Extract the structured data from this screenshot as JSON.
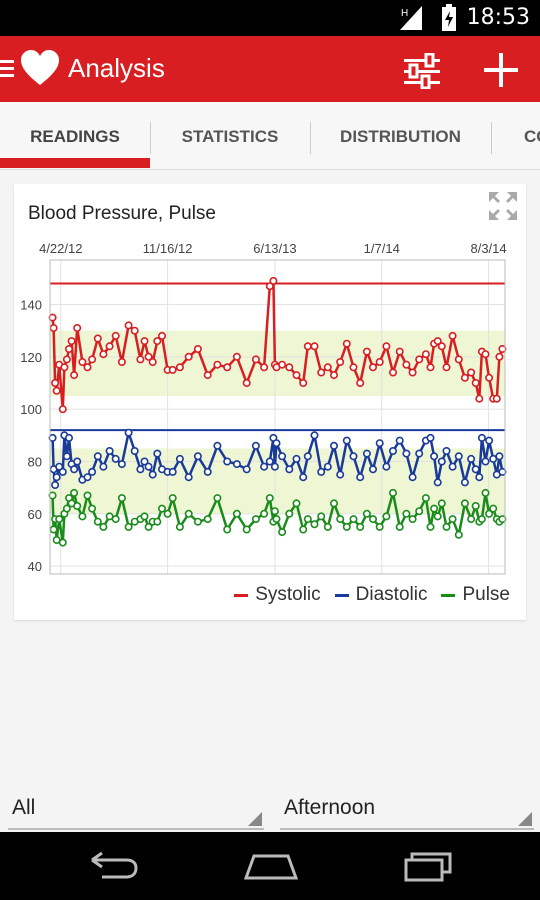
{
  "status_bar": {
    "time": "18:53",
    "network_label": "H"
  },
  "app_bar": {
    "title": "Analysis",
    "icons": [
      "menu-icon",
      "heart-logo-icon",
      "filter-sliders-icon",
      "add-icon"
    ]
  },
  "tabs": [
    {
      "label": "READINGS",
      "selected": true
    },
    {
      "label": "STATISTICS",
      "selected": false
    },
    {
      "label": "DISTRIBUTION",
      "selected": false
    },
    {
      "label": "CO",
      "selected": false
    }
  ],
  "chart_card": {
    "title": "Blood Pressure, Pulse",
    "expand_icon": "expand-icon"
  },
  "chart_data": {
    "type": "line",
    "title": "Blood Pressure, Pulse",
    "x_tick_labels": [
      "4/22/12",
      "11/16/12",
      "6/13/13",
      "1/7/14",
      "8/3/14"
    ],
    "x_range": [
      "2012-04-01",
      "2014-09-04"
    ],
    "y_tick_labels": [
      "40",
      "60",
      "80",
      "100",
      "120",
      "140"
    ],
    "ylim": [
      37,
      157
    ],
    "grid": true,
    "legend_position": "bottom-right",
    "target_bands": [
      {
        "series": "Systolic",
        "range": [
          105,
          130
        ],
        "color": "#eef6d4"
      },
      {
        "series": "Diastolic / Pulse",
        "range": [
          60,
          85
        ],
        "color": "#eef6d4"
      }
    ],
    "reference_lines": [
      {
        "series": "Systolic",
        "value": 148,
        "color": "#d81e21"
      },
      {
        "series": "Diastolic",
        "value": 92,
        "color": "#1a3a99"
      }
    ],
    "series": [
      {
        "name": "Systolic",
        "color": "#d81e21",
        "x": [
          "2012-04-06",
          "2012-04-08",
          "2012-04-11",
          "2012-04-14",
          "2012-04-19",
          "2012-04-26",
          "2012-04-29",
          "2012-05-04",
          "2012-05-08",
          "2012-05-13",
          "2012-05-18",
          "2012-05-24",
          "2012-06-03",
          "2012-06-13",
          "2012-06-22",
          "2012-07-03",
          "2012-07-14",
          "2012-07-26",
          "2012-08-07",
          "2012-08-19",
          "2012-09-01",
          "2012-09-13",
          "2012-09-24",
          "2012-10-02",
          "2012-10-10",
          "2012-10-18",
          "2012-10-27",
          "2012-11-05",
          "2012-11-16",
          "2012-11-26",
          "2012-12-10",
          "2012-12-27",
          "2013-01-14",
          "2013-02-02",
          "2013-02-21",
          "2013-03-12",
          "2013-03-31",
          "2013-04-19",
          "2013-05-07",
          "2013-05-23",
          "2013-06-03",
          "2013-06-10",
          "2013-06-13",
          "2013-06-16",
          "2013-06-27",
          "2013-07-11",
          "2013-07-25",
          "2013-08-07",
          "2013-08-16",
          "2013-08-29",
          "2013-09-11",
          "2013-09-24",
          "2013-10-06",
          "2013-10-18",
          "2013-10-31",
          "2013-11-13",
          "2013-11-26",
          "2013-12-09",
          "2013-12-21",
          "2014-01-03",
          "2014-01-16",
          "2014-01-29",
          "2014-02-11",
          "2014-02-24",
          "2014-03-08",
          "2014-03-21",
          "2014-04-03",
          "2014-04-12",
          "2014-04-19",
          "2014-04-26",
          "2014-05-04",
          "2014-05-13",
          "2014-05-25",
          "2014-06-06",
          "2014-06-18",
          "2014-06-30",
          "2014-07-09",
          "2014-07-16",
          "2014-07-21",
          "2014-07-28",
          "2014-08-04",
          "2014-08-12",
          "2014-08-19",
          "2014-08-24",
          "2014-08-30"
        ],
        "values": [
          135,
          131,
          110,
          107,
          117,
          100,
          116,
          119,
          123,
          126,
          113,
          131,
          118,
          116,
          119,
          127,
          121,
          124,
          128,
          118,
          132,
          130,
          119,
          126,
          120,
          118,
          126,
          128,
          115,
          115,
          116,
          120,
          123,
          113,
          117,
          116,
          120,
          110,
          119,
          116,
          147,
          149,
          117,
          116,
          117,
          116,
          113,
          110,
          124,
          124,
          114,
          116,
          113,
          118,
          125,
          116,
          110,
          122,
          116,
          118,
          124,
          114,
          122,
          117,
          114,
          119,
          121,
          116,
          125,
          126,
          124,
          116,
          128,
          119,
          112,
          114,
          110,
          104,
          122,
          121,
          112,
          104,
          104,
          120,
          123
        ]
      },
      {
        "name": "Diastolic",
        "color": "#1a3a99",
        "x": [
          "2012-04-06",
          "2012-04-08",
          "2012-04-11",
          "2012-04-14",
          "2012-04-19",
          "2012-04-26",
          "2012-04-29",
          "2012-05-04",
          "2012-05-08",
          "2012-05-13",
          "2012-05-18",
          "2012-05-24",
          "2012-06-03",
          "2012-06-13",
          "2012-06-22",
          "2012-07-03",
          "2012-07-14",
          "2012-07-26",
          "2012-08-07",
          "2012-08-19",
          "2012-09-01",
          "2012-09-13",
          "2012-09-24",
          "2012-10-02",
          "2012-10-10",
          "2012-10-18",
          "2012-10-27",
          "2012-11-05",
          "2012-11-16",
          "2012-11-26",
          "2012-12-10",
          "2012-12-27",
          "2013-01-14",
          "2013-02-02",
          "2013-02-21",
          "2013-03-12",
          "2013-03-31",
          "2013-04-19",
          "2013-05-07",
          "2013-05-23",
          "2013-06-03",
          "2013-06-10",
          "2013-06-13",
          "2013-06-16",
          "2013-06-27",
          "2013-07-11",
          "2013-07-25",
          "2013-08-07",
          "2013-08-16",
          "2013-08-29",
          "2013-09-11",
          "2013-09-24",
          "2013-10-06",
          "2013-10-18",
          "2013-10-31",
          "2013-11-13",
          "2013-11-26",
          "2013-12-09",
          "2013-12-21",
          "2014-01-03",
          "2014-01-16",
          "2014-01-29",
          "2014-02-11",
          "2014-02-24",
          "2014-03-08",
          "2014-03-21",
          "2014-04-03",
          "2014-04-12",
          "2014-04-19",
          "2014-04-26",
          "2014-05-04",
          "2014-05-13",
          "2014-05-25",
          "2014-06-06",
          "2014-06-18",
          "2014-06-30",
          "2014-07-09",
          "2014-07-16",
          "2014-07-21",
          "2014-07-28",
          "2014-08-04",
          "2014-08-12",
          "2014-08-19",
          "2014-08-24",
          "2014-08-30"
        ],
        "values": [
          89,
          77,
          71,
          74,
          78,
          76,
          90,
          82,
          89,
          79,
          77,
          80,
          73,
          74,
          76,
          82,
          78,
          84,
          81,
          79,
          91,
          84,
          77,
          80,
          78,
          75,
          83,
          77,
          76,
          76,
          81,
          74,
          82,
          76,
          86,
          80,
          79,
          77,
          86,
          78,
          80,
          89,
          78,
          87,
          82,
          77,
          81,
          74,
          82,
          90,
          76,
          78,
          86,
          75,
          88,
          82,
          74,
          83,
          77,
          87,
          78,
          84,
          88,
          83,
          74,
          83,
          88,
          89,
          82,
          72,
          80,
          84,
          78,
          82,
          72,
          81,
          77,
          74,
          89,
          80,
          88,
          81,
          75,
          82,
          76
        ]
      },
      {
        "name": "Pulse",
        "color": "#1a8c1a",
        "x": [
          "2012-04-06",
          "2012-04-08",
          "2012-04-11",
          "2012-04-14",
          "2012-04-19",
          "2012-04-26",
          "2012-04-29",
          "2012-05-04",
          "2012-05-08",
          "2012-05-13",
          "2012-05-18",
          "2012-05-24",
          "2012-06-03",
          "2012-06-13",
          "2012-06-22",
          "2012-07-03",
          "2012-07-14",
          "2012-07-26",
          "2012-08-07",
          "2012-08-19",
          "2012-09-01",
          "2012-09-13",
          "2012-09-24",
          "2012-10-02",
          "2012-10-10",
          "2012-10-18",
          "2012-10-27",
          "2012-11-05",
          "2012-11-16",
          "2012-11-26",
          "2012-12-10",
          "2012-12-27",
          "2013-01-14",
          "2013-02-02",
          "2013-02-21",
          "2013-03-12",
          "2013-03-31",
          "2013-04-19",
          "2013-05-07",
          "2013-05-23",
          "2013-06-03",
          "2013-06-10",
          "2013-06-13",
          "2013-06-16",
          "2013-06-27",
          "2013-07-11",
          "2013-07-25",
          "2013-08-07",
          "2013-08-16",
          "2013-08-29",
          "2013-09-11",
          "2013-09-24",
          "2013-10-06",
          "2013-10-18",
          "2013-10-31",
          "2013-11-13",
          "2013-11-26",
          "2013-12-09",
          "2013-12-21",
          "2014-01-03",
          "2014-01-16",
          "2014-01-29",
          "2014-02-11",
          "2014-02-24",
          "2014-03-08",
          "2014-03-21",
          "2014-04-03",
          "2014-04-12",
          "2014-04-19",
          "2014-04-26",
          "2014-05-04",
          "2014-05-13",
          "2014-05-25",
          "2014-06-06",
          "2014-06-18",
          "2014-06-30",
          "2014-07-09",
          "2014-07-16",
          "2014-07-21",
          "2014-07-28",
          "2014-08-04",
          "2014-08-12",
          "2014-08-19",
          "2014-08-24",
          "2014-08-30"
        ],
        "values": [
          67,
          54,
          58,
          50,
          58,
          49,
          60,
          62,
          66,
          64,
          68,
          63,
          59,
          67,
          62,
          57,
          55,
          59,
          58,
          66,
          55,
          57,
          58,
          59,
          55,
          57,
          57,
          62,
          60,
          66,
          55,
          60,
          57,
          58,
          66,
          54,
          60,
          54,
          58,
          60,
          66,
          57,
          61,
          58,
          53,
          60,
          64,
          54,
          58,
          56,
          59,
          55,
          64,
          58,
          55,
          58,
          55,
          60,
          58,
          55,
          59,
          68,
          55,
          60,
          58,
          61,
          66,
          55,
          62,
          59,
          64,
          55,
          58,
          52,
          64,
          58,
          63,
          57,
          58,
          68,
          60,
          62,
          58,
          57,
          58
        ]
      }
    ]
  },
  "legend": [
    {
      "label": "Systolic",
      "color": "#d81e21"
    },
    {
      "label": "Diastolic",
      "color": "#1a3a99"
    },
    {
      "label": "Pulse",
      "color": "#1a8c1a"
    }
  ],
  "filters": {
    "left": {
      "value": "All"
    },
    "right": {
      "value": "Afternoon"
    }
  },
  "nav_bar": {
    "icons": [
      "back-icon",
      "home-icon",
      "recent-apps-icon"
    ]
  }
}
